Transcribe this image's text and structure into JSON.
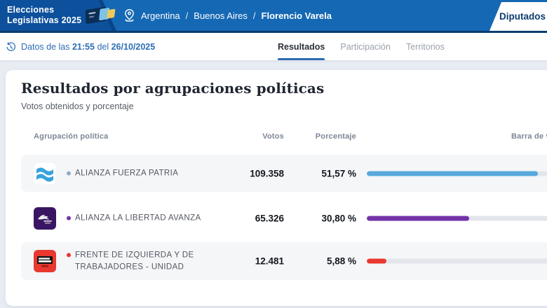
{
  "app": {
    "title_line1": "Elecciones",
    "title_line2": "Legislativas 2025"
  },
  "header": {
    "breadcrumb": {
      "items": [
        "Argentina",
        "Buenos Aires",
        "Florencio Varela"
      ],
      "separator": "/"
    },
    "category_tab": "Diputados"
  },
  "statusbar": {
    "prefix": "Datos de las",
    "time": "21:55",
    "connector": "del",
    "date": "26/10/2025",
    "tabs": [
      {
        "label": "Resultados",
        "active": true
      },
      {
        "label": "Participación",
        "active": false
      },
      {
        "label": "Territorios",
        "active": false
      }
    ]
  },
  "main": {
    "title": "Resultados por agrupaciones políticas",
    "subtitle": "Votos obtenidos y porcentaje",
    "table": {
      "columns": [
        "Agrupación política",
        "Votos",
        "Porcentaje",
        "Barra de votos"
      ],
      "rows": [
        {
          "party": "ALIANZA FUERZA PATRIA",
          "votes": "109.358",
          "percent_label": "51,57 %",
          "percent": 51.57,
          "bar_color": "#57A9DD",
          "bullet_color": "#8FACC8",
          "logo": "fuerza-patria"
        },
        {
          "party": "ALIANZA LA LIBERTAD AVANZA",
          "votes": "65.326",
          "percent_label": "30,80 %",
          "percent": 30.8,
          "bar_color": "#7233A8",
          "bullet_color": "#7233A8",
          "logo": "la-libertad-avanza"
        },
        {
          "party": "FRENTE DE IZQUIERDA Y DE TRABAJADORES - UNIDAD",
          "votes": "12.481",
          "percent_label": "5,88 %",
          "percent": 5.88,
          "bar_color": "#E8382F",
          "bullet_color": "#E8382F",
          "logo": "frente-de-izquierda"
        }
      ]
    }
  },
  "colors": {
    "header_blue": "#1568B4",
    "header_blue_dark": "#0D509C",
    "navy_border": "#0B3C70",
    "accent_blue": "#2D6EB5",
    "page_bg": "#E8EDF4",
    "row_alt_bg": "#F5F6F8",
    "bar_track": "#E3E6EB"
  }
}
